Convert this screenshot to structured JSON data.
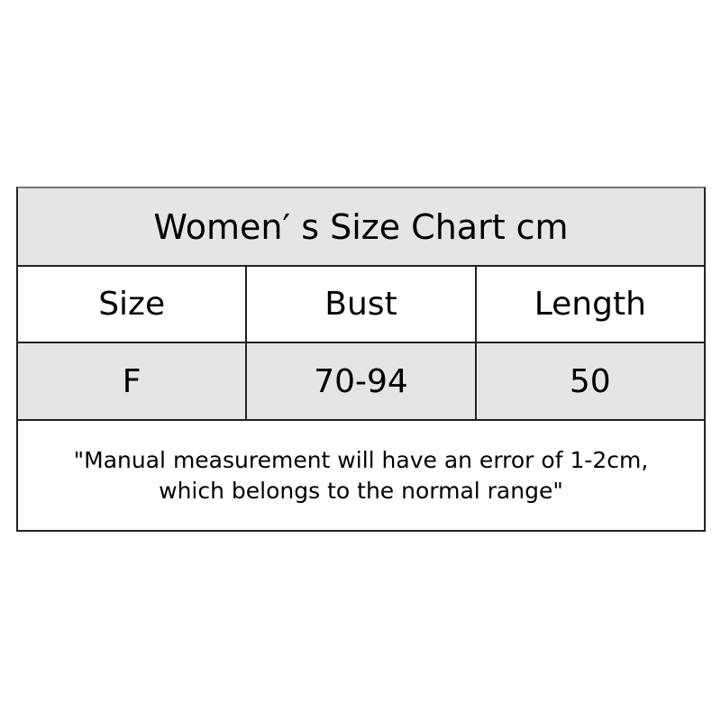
{
  "title": "Women′ s Size Chart cm",
  "headers": [
    "Size",
    "Bust",
    "Length"
  ],
  "rows": [
    [
      "F",
      "70-94",
      "50"
    ]
  ],
  "note": [
    "\"Manual measurement will have an error of 1-2cm,",
    "which belongs to the normal range\""
  ],
  "colors": {
    "row_fill": "#e6e5e6",
    "border": "#222222"
  }
}
